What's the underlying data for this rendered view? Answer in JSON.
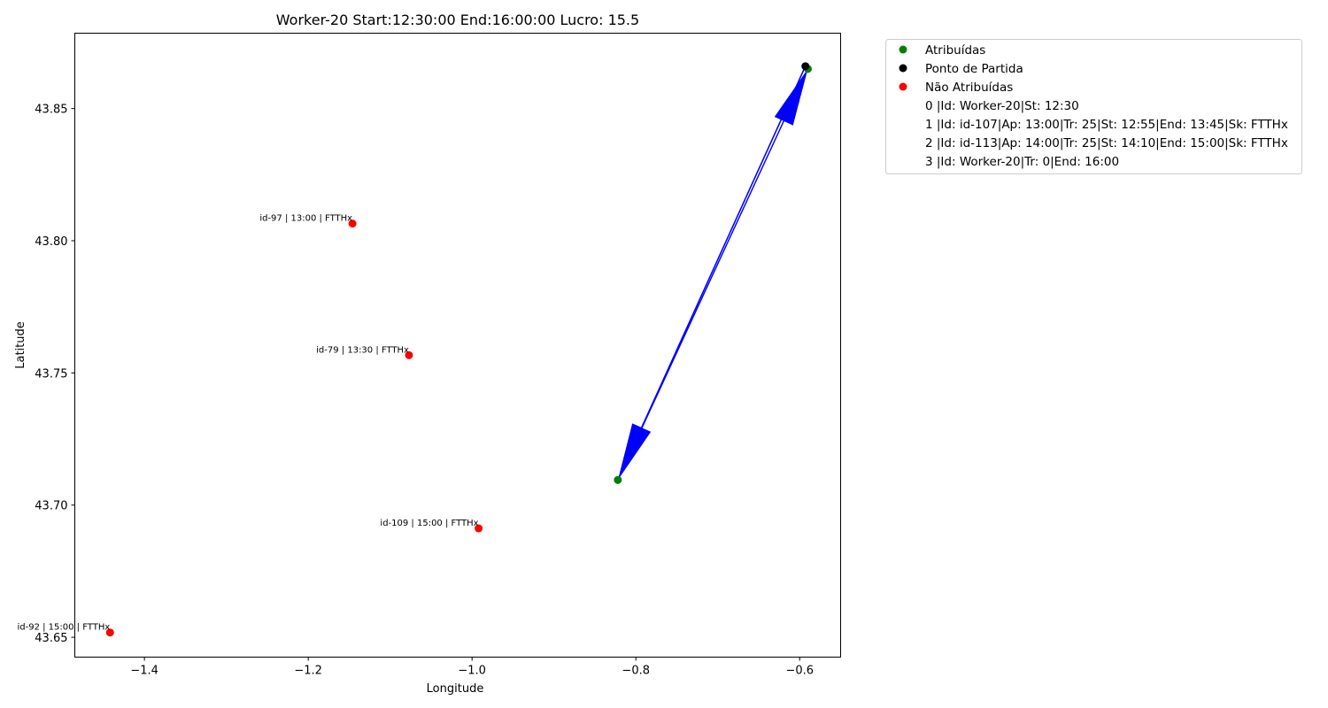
{
  "chart_data": {
    "type": "scatter",
    "title": "Worker-20 Start:12:30:00 End:16:00:00 Lucro: 15.5",
    "xlabel": "Longitude",
    "ylabel": "Latitude",
    "xlim": [
      -1.485,
      -0.55
    ],
    "ylim": [
      43.6425,
      43.8785
    ],
    "xticks": [
      -1.4,
      -1.2,
      -1.0,
      -0.8,
      -0.6
    ],
    "yticks": [
      43.65,
      43.7,
      43.75,
      43.8,
      43.85
    ],
    "xtick_labels": [
      "−1.4",
      "−1.2",
      "−1.0",
      "−0.8",
      "−0.6"
    ],
    "ytick_labels": [
      "43.65",
      "43.70",
      "43.75",
      "43.80",
      "43.85"
    ],
    "grid": false,
    "legend_placement": "outside upper right",
    "series": [
      {
        "name": "Atribuídas",
        "color": "#008000",
        "points": [
          {
            "x": -0.59,
            "y": 43.865
          },
          {
            "x": -0.822,
            "y": 43.7095
          }
        ]
      },
      {
        "name": "Ponto de Partida",
        "color": "#000000",
        "points": [
          {
            "x": -0.593,
            "y": 43.866
          }
        ]
      },
      {
        "name": "Não Atribuídas",
        "color": "#ff0000",
        "points": [
          {
            "x": -1.146,
            "y": 43.8065,
            "label": "id-97 | 13:00 | FTTHx"
          },
          {
            "x": -1.077,
            "y": 43.7567,
            "label": "id-79 | 13:30 | FTTHx"
          },
          {
            "x": -0.992,
            "y": 43.6912,
            "label": "id-109 | 15:00 | FTTHx"
          },
          {
            "x": -1.442,
            "y": 43.6518,
            "label": "id-92 | 15:00 | FTTHx"
          }
        ]
      }
    ],
    "arrows": [
      {
        "from": [
          -0.593,
          43.866
        ],
        "to": [
          -0.822,
          43.7095
        ],
        "color": "#0000ff"
      },
      {
        "from": [
          -0.822,
          43.7095
        ],
        "to": [
          -0.59,
          43.865
        ],
        "color": "#0000ff"
      }
    ],
    "legend_extra": [
      "0 |Id: Worker-20|St: 12:30",
      "1 |Id: id-107|Ap: 13:00|Tr: 25|St: 12:55|End: 13:45|Sk: FTTHx",
      "2 |Id: id-113|Ap: 14:00|Tr: 25|St: 14:10|End: 15:00|Sk: FTTHx",
      "3 |Id: Worker-20|Tr: 0|End: 16:00"
    ]
  }
}
